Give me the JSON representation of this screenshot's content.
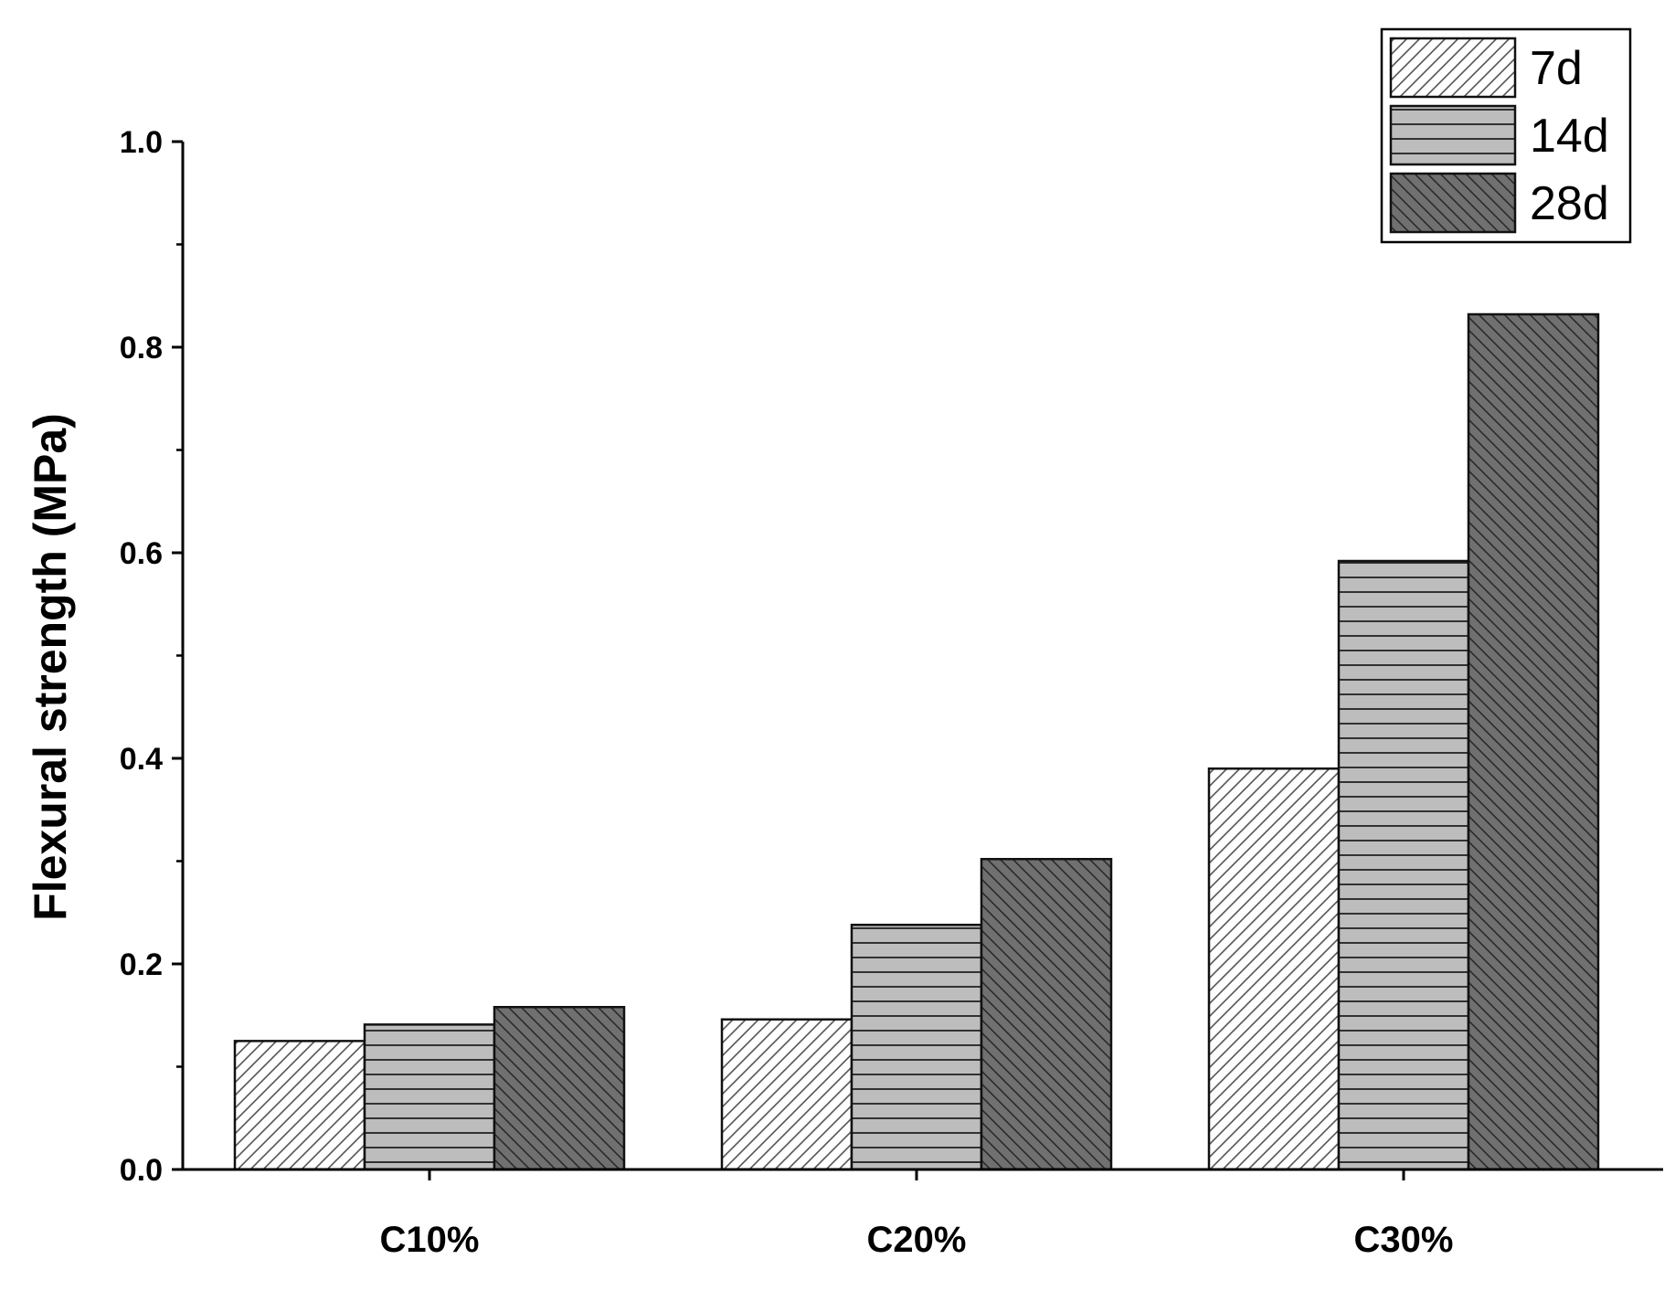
{
  "chart_data": {
    "type": "bar",
    "categories": [
      "C10%",
      "C20%",
      "C30%"
    ],
    "series": [
      {
        "name": "7d",
        "values": [
          0.125,
          0.146,
          0.39
        ],
        "fill": "#ffffff",
        "pattern": "diagonal-forward"
      },
      {
        "name": "14d",
        "values": [
          0.141,
          0.238,
          0.592
        ],
        "fill": "#b9b9b9",
        "pattern": "horizontal"
      },
      {
        "name": "28d",
        "values": [
          0.158,
          0.302,
          0.832
        ],
        "fill": "#6e6e6e",
        "pattern": "diagonal-backward"
      }
    ],
    "ylabel": "Flexural strength (MPa)",
    "xlabel": "",
    "ylim": [
      0,
      1.0
    ],
    "yticks": [
      "0.0",
      "0.2",
      "0.4",
      "0.6",
      "0.8",
      "1.0"
    ],
    "grid": false,
    "legend_position": "top-right"
  }
}
